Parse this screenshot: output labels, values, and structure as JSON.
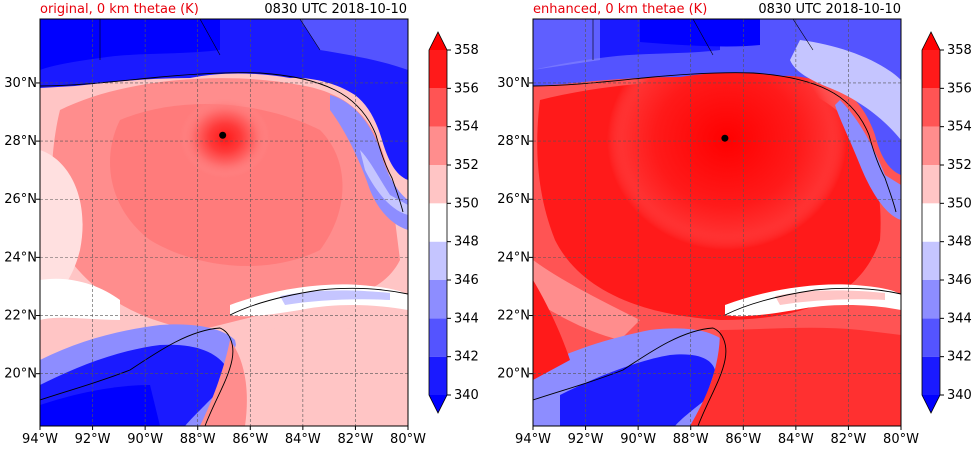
{
  "panels": [
    {
      "title_left": "original, 0 km thetae (K)",
      "title_right": "0830 UTC 2018-10-10",
      "storm_marker": {
        "lon": -87.05,
        "lat": 28.2
      }
    },
    {
      "title_left": "enhanced, 0 km thetae (K)",
      "title_right": "0830 UTC 2018-10-10",
      "storm_marker": {
        "lon": -86.7,
        "lat": 28.1
      }
    }
  ],
  "map_extent": {
    "lon_min": -94,
    "lon_max": -80,
    "lat_min": 18.2,
    "lat_max": 32.2
  },
  "lon_ticks": [
    {
      "value": -94,
      "label": "94°W"
    },
    {
      "value": -92,
      "label": "92°W"
    },
    {
      "value": -90,
      "label": "90°W"
    },
    {
      "value": -88,
      "label": "88°W"
    },
    {
      "value": -86,
      "label": "86°W"
    },
    {
      "value": -84,
      "label": "84°W"
    },
    {
      "value": -82,
      "label": "82°W"
    },
    {
      "value": -80,
      "label": "80°W"
    }
  ],
  "lat_ticks": [
    {
      "value": 20,
      "label": "20°N"
    },
    {
      "value": 22,
      "label": "22°N"
    },
    {
      "value": 24,
      "label": "24°N"
    },
    {
      "value": 26,
      "label": "26°N"
    },
    {
      "value": 28,
      "label": "28°N"
    },
    {
      "value": 30,
      "label": "30°N"
    }
  ],
  "colorbar": {
    "levels": [
      340,
      342,
      344,
      346,
      348,
      350,
      352,
      354,
      356,
      358
    ],
    "labels": [
      "340",
      "342",
      "344",
      "346",
      "348",
      "350",
      "352",
      "354",
      "356",
      "358"
    ],
    "colors": [
      "#1a1aff",
      "#5454ff",
      "#8d8dff",
      "#c5c5ff",
      "#ffffff",
      "#ffc5c5",
      "#ff8d8d",
      "#ff5454",
      "#ff1a1a"
    ],
    "under_color": "#0000ff",
    "over_color": "#ff0000"
  },
  "colors": {
    "title_left": "#e8000b",
    "grid": "#555555",
    "coast": "#000000"
  }
}
